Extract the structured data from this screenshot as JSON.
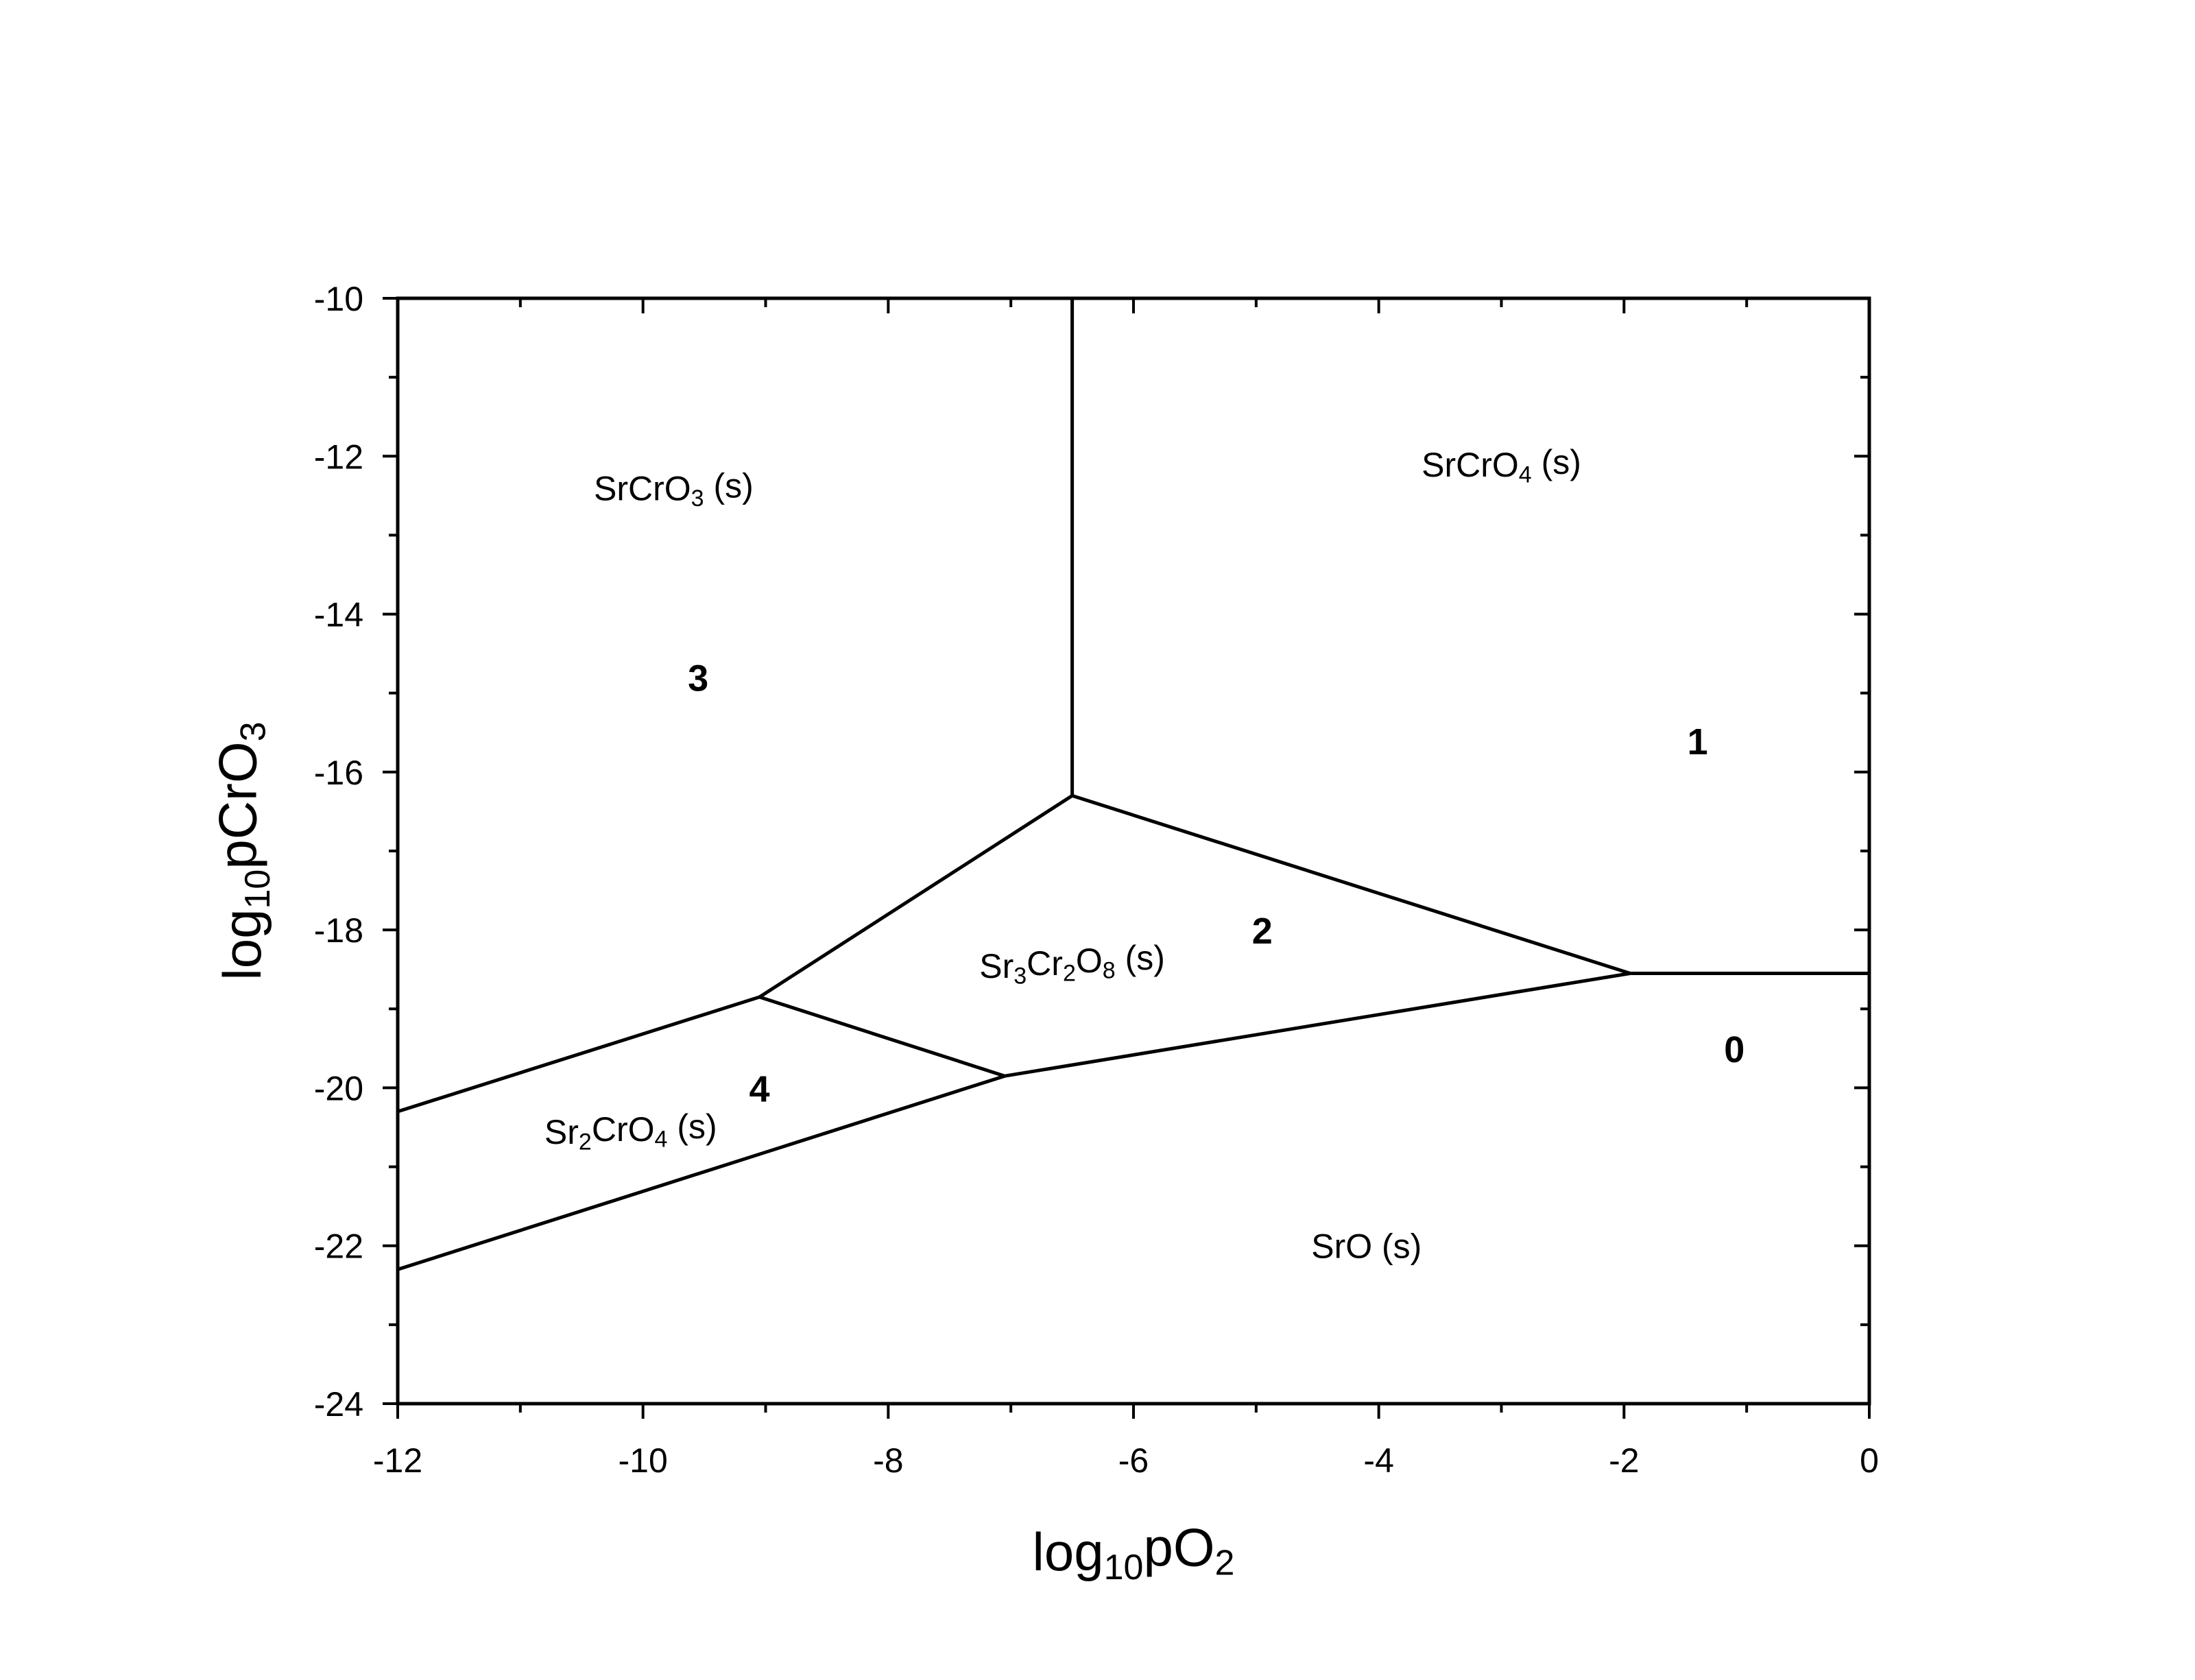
{
  "chart_data": {
    "type": "line",
    "title": "",
    "xlabel": {
      "parts": [
        {
          "t": "log"
        },
        {
          "t": "10",
          "sub": true
        },
        {
          "t": "pO"
        },
        {
          "t": "2",
          "sub": true
        }
      ]
    },
    "ylabel": {
      "parts": [
        {
          "t": "log"
        },
        {
          "t": "10",
          "sub": true
        },
        {
          "t": "pCrO"
        },
        {
          "t": "3",
          "sub": true
        }
      ]
    },
    "xlim": [
      -12,
      0
    ],
    "ylim": [
      -24,
      -10
    ],
    "x_major_ticks": [
      -12,
      -10,
      -8,
      -6,
      -4,
      -2,
      0
    ],
    "x_tick_labels": [
      "-12",
      "-10",
      "-8",
      "-6",
      "-4",
      "-2",
      "0"
    ],
    "y_major_ticks": [
      -10,
      -12,
      -14,
      -16,
      -18,
      -20,
      -22,
      -24
    ],
    "y_tick_labels": [
      "-10",
      "-12",
      "-14",
      "-16",
      "-18",
      "-20",
      "-22",
      "-24"
    ],
    "grid": false,
    "boundaries": [
      {
        "name": "3-1",
        "points": [
          [
            -6.5,
            -10
          ],
          [
            -6.5,
            -16.3
          ]
        ]
      },
      {
        "name": "3-2",
        "points": [
          [
            -6.5,
            -16.3
          ],
          [
            -9.05,
            -18.85
          ]
        ]
      },
      {
        "name": "3-4",
        "points": [
          [
            -9.05,
            -18.85
          ],
          [
            -12,
            -20.3
          ]
        ]
      },
      {
        "name": "4-2",
        "points": [
          [
            -9.05,
            -18.85
          ],
          [
            -7.05,
            -19.85
          ]
        ]
      },
      {
        "name": "1-2",
        "points": [
          [
            -6.5,
            -16.3
          ],
          [
            -1.95,
            -18.55
          ]
        ]
      },
      {
        "name": "2-0",
        "points": [
          [
            -1.95,
            -18.55
          ],
          [
            -7.05,
            -19.85
          ]
        ]
      },
      {
        "name": "4-0",
        "points": [
          [
            -7.05,
            -19.85
          ],
          [
            -12,
            -22.3
          ]
        ]
      },
      {
        "name": "1-0",
        "points": [
          [
            -1.95,
            -18.55
          ],
          [
            0,
            -18.55
          ]
        ]
      }
    ],
    "region_labels": [
      {
        "id": "srcro3",
        "x": -9.75,
        "y": -12.4,
        "parts": [
          {
            "t": "SrCrO"
          },
          {
            "t": "3",
            "sub": true
          },
          {
            "t": " (s)"
          }
        ]
      },
      {
        "id": "srcro4",
        "x": -3.0,
        "y": -12.1,
        "parts": [
          {
            "t": "SrCrO"
          },
          {
            "t": "4",
            "sub": true
          },
          {
            "t": " (s)"
          }
        ]
      },
      {
        "id": "sr3cr2o8",
        "x": -6.5,
        "y": -18.45,
        "parts": [
          {
            "t": "Sr"
          },
          {
            "t": "3",
            "sub": true
          },
          {
            "t": "Cr"
          },
          {
            "t": "2",
            "sub": true
          },
          {
            "t": "O"
          },
          {
            "t": "8",
            "sub": true
          },
          {
            "t": " (s)"
          }
        ]
      },
      {
        "id": "sr2cro4",
        "x": -10.1,
        "y": -20.55,
        "parts": [
          {
            "t": "Sr"
          },
          {
            "t": "2",
            "sub": true
          },
          {
            "t": "CrO"
          },
          {
            "t": "4",
            "sub": true
          },
          {
            "t": " (s)"
          }
        ]
      },
      {
        "id": "sro",
        "x": -4.1,
        "y": -22.0,
        "parts": [
          {
            "t": "SrO (s)"
          }
        ]
      }
    ],
    "region_numbers": [
      {
        "x": -9.55,
        "y": -14.8,
        "label": "3"
      },
      {
        "x": -1.4,
        "y": -15.6,
        "label": "1"
      },
      {
        "x": -4.95,
        "y": -18.0,
        "label": "2"
      },
      {
        "x": -9.05,
        "y": -20.0,
        "label": "4"
      },
      {
        "x": -1.1,
        "y": -19.5,
        "label": "0"
      }
    ]
  }
}
